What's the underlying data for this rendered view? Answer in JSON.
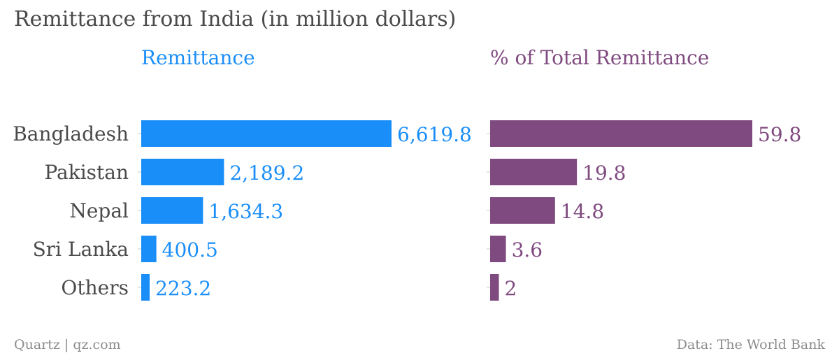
{
  "title": "Remittance from India (in million dollars)",
  "footer": {
    "left": "Quartz | qz.com",
    "right": "Data: The World Bank"
  },
  "colors": {
    "remittance": "#1a8ef8",
    "share": "#7f4a7f",
    "category_text": "#4a4a4a",
    "axis": "#c8c8c8"
  },
  "chart_data": [
    {
      "type": "bar",
      "orientation": "horizontal",
      "title": "Remittance",
      "categories": [
        "Bangladesh",
        "Pakistan",
        "Nepal",
        "Sri Lanka",
        "Others"
      ],
      "values": [
        6619.8,
        2189.2,
        1634.3,
        400.5,
        223.2
      ],
      "value_labels": [
        "6,619.8",
        "2,189.2",
        "1,634.3",
        "400.5",
        "223.2"
      ],
      "color": "#1a8ef8",
      "xlim": [
        0,
        6619.8
      ]
    },
    {
      "type": "bar",
      "orientation": "horizontal",
      "title": "% of Total Remittance",
      "categories": [
        "Bangladesh",
        "Pakistan",
        "Nepal",
        "Sri Lanka",
        "Others"
      ],
      "values": [
        59.8,
        19.8,
        14.8,
        3.6,
        2
      ],
      "value_labels": [
        "59.8",
        "19.8",
        "14.8",
        "3.6",
        "2"
      ],
      "color": "#7f4a7f",
      "xlim": [
        0,
        59.8
      ]
    }
  ]
}
